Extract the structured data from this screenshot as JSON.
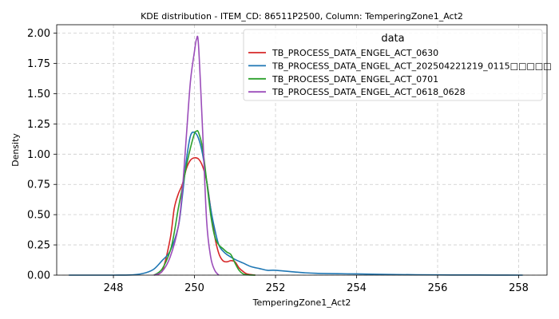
{
  "chart_data": {
    "type": "line",
    "title": "KDE distribution - ITEM_CD: 86511P2500, Column: TemperingZone1_Act2",
    "xlabel": "TemperingZone1_Act2",
    "ylabel": "Density",
    "xlim": [
      246.6,
      258.7
    ],
    "ylim": [
      0,
      2.07
    ],
    "xticks": [
      248,
      250,
      252,
      254,
      256,
      258
    ],
    "xtick_labels": [
      "248",
      "250",
      "252",
      "254",
      "256",
      "258"
    ],
    "yticks": [
      0,
      0.25,
      0.5,
      0.75,
      1.0,
      1.25,
      1.5,
      1.75,
      2.0
    ],
    "ytick_labels": [
      "0.00",
      "0.25",
      "0.50",
      "0.75",
      "1.00",
      "1.25",
      "1.50",
      "1.75",
      "2.00"
    ],
    "grid": true,
    "legend_title": "data",
    "legend_position": "top-right",
    "series": [
      {
        "name": "TB_PROCESS_DATA_ENGEL_ACT_0630",
        "color": "#d62728",
        "x": [
          249.0,
          249.2,
          249.4,
          249.5,
          249.6,
          249.7,
          249.8,
          249.9,
          250.0,
          250.1,
          250.2,
          250.3,
          250.4,
          250.5,
          250.6,
          250.7,
          250.8,
          250.9,
          251.0,
          251.1,
          251.2,
          251.3,
          251.5
        ],
        "y": [
          0.0,
          0.03,
          0.3,
          0.55,
          0.67,
          0.75,
          0.88,
          0.95,
          0.97,
          0.96,
          0.9,
          0.78,
          0.55,
          0.32,
          0.18,
          0.12,
          0.11,
          0.12,
          0.11,
          0.06,
          0.03,
          0.01,
          0.0
        ]
      },
      {
        "name": "TB_PROCESS_DATA_ENGEL_ACT_202504221219_0115□□□□□",
        "color": "#1f77b4",
        "x": [
          246.9,
          247.5,
          248.0,
          248.5,
          248.8,
          249.0,
          249.2,
          249.4,
          249.6,
          249.7,
          249.8,
          249.9,
          250.0,
          250.1,
          250.2,
          250.3,
          250.4,
          250.5,
          250.6,
          250.7,
          250.8,
          251.0,
          251.2,
          251.4,
          251.6,
          251.8,
          252.0,
          252.5,
          253.0,
          254.0,
          255.0,
          256.0,
          257.0,
          258.1
        ],
        "y": [
          0.0,
          0.0,
          0.0,
          0.003,
          0.02,
          0.05,
          0.12,
          0.2,
          0.4,
          0.65,
          0.95,
          1.15,
          1.18,
          1.13,
          1.0,
          0.78,
          0.55,
          0.38,
          0.25,
          0.2,
          0.17,
          0.13,
          0.1,
          0.07,
          0.055,
          0.04,
          0.04,
          0.025,
          0.015,
          0.01,
          0.005,
          0.002,
          0.001,
          0.0
        ]
      },
      {
        "name": "TB_PROCESS_DATA_ENGEL_ACT_0701",
        "color": "#2ca02c",
        "x": [
          249.0,
          249.2,
          249.4,
          249.5,
          249.6,
          249.7,
          249.8,
          249.9,
          250.0,
          250.05,
          250.1,
          250.2,
          250.3,
          250.4,
          250.5,
          250.6,
          250.7,
          250.8,
          250.9,
          251.0,
          251.1,
          251.2,
          251.3,
          251.5
        ],
        "y": [
          0.0,
          0.05,
          0.2,
          0.35,
          0.55,
          0.72,
          0.9,
          1.05,
          1.17,
          1.19,
          1.18,
          1.05,
          0.78,
          0.5,
          0.32,
          0.25,
          0.22,
          0.19,
          0.17,
          0.1,
          0.04,
          0.01,
          0.003,
          0.0
        ]
      },
      {
        "name": "TB_PROCESS_DATA_ENGEL_ACT_0618_0628",
        "color": "#9b4dba",
        "x": [
          249.0,
          249.2,
          249.4,
          249.6,
          249.7,
          249.8,
          249.9,
          250.0,
          250.05,
          250.1,
          250.2,
          250.3,
          250.4,
          250.5,
          250.6
        ],
        "y": [
          0.0,
          0.03,
          0.15,
          0.4,
          0.7,
          1.15,
          1.6,
          1.85,
          1.95,
          1.9,
          1.2,
          0.45,
          0.15,
          0.04,
          0.0
        ]
      }
    ]
  }
}
